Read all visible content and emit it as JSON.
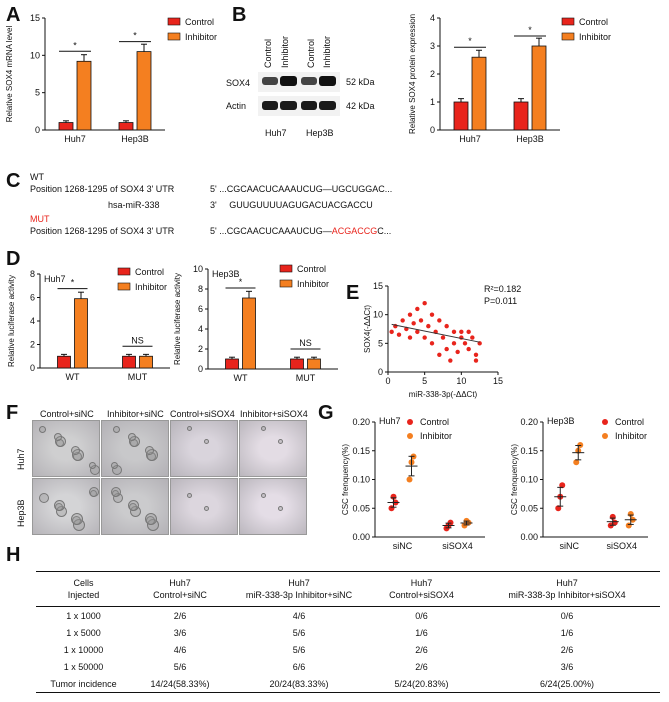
{
  "panels": {
    "A": "A",
    "B": "B",
    "C": "C",
    "D": "D",
    "E": "E",
    "F": "F",
    "G": "G",
    "H": "H"
  },
  "colors": {
    "control": "#e8241c",
    "inhibitor": "#f47f20"
  },
  "legend": {
    "control": "Control",
    "inhibitor": "Inhibitor"
  },
  "chart_data": [
    {
      "id": "A",
      "type": "bar",
      "categories": [
        "Huh7",
        "Hep3B"
      ],
      "series": [
        {
          "name": "Control",
          "values": [
            1,
            1
          ]
        },
        {
          "name": "Inhibitor",
          "values": [
            9.2,
            10.5
          ]
        }
      ],
      "ylabel": "Relative SOX4 mRNA level",
      "ylim": [
        0,
        15
      ],
      "yticks": [
        0,
        5,
        10,
        15
      ],
      "significance": [
        "*",
        "*"
      ]
    },
    {
      "id": "B",
      "type": "bar",
      "categories": [
        "Huh7",
        "Hep3B"
      ],
      "series": [
        {
          "name": "Control",
          "values": [
            1,
            1
          ]
        },
        {
          "name": "Inhibitor",
          "values": [
            2.6,
            3.0
          ]
        }
      ],
      "ylabel": "Relative SOX4 protein expression",
      "ylim": [
        0,
        4
      ],
      "yticks": [
        0,
        1,
        2,
        3,
        4
      ],
      "significance": [
        "*",
        "*"
      ]
    },
    {
      "id": "D-Huh7",
      "type": "bar",
      "title": "Huh7",
      "categories": [
        "WT",
        "MUT"
      ],
      "series": [
        {
          "name": "Control",
          "values": [
            1,
            1
          ]
        },
        {
          "name": "Inhibitor",
          "values": [
            5.9,
            1
          ]
        }
      ],
      "ylabel": "Relative luciferase activity",
      "ylim": [
        0,
        8
      ],
      "yticks": [
        0,
        2,
        4,
        6,
        8
      ],
      "significance": [
        "*",
        "NS"
      ]
    },
    {
      "id": "D-Hep3B",
      "type": "bar",
      "title": "Hep3B",
      "categories": [
        "WT",
        "MUT"
      ],
      "series": [
        {
          "name": "Control",
          "values": [
            1,
            1
          ]
        },
        {
          "name": "Inhibitor",
          "values": [
            7.1,
            1
          ]
        }
      ],
      "ylabel": "Relative luciferase activity",
      "ylim": [
        0,
        10
      ],
      "yticks": [
        0,
        2,
        4,
        6,
        8,
        10
      ],
      "significance": [
        "*",
        "NS"
      ]
    },
    {
      "id": "E",
      "type": "scatter",
      "xlabel": "miR-338-3p(-ΔΔCt)",
      "ylabel": "SOX4(-ΔΔCt)",
      "xlim": [
        0,
        15
      ],
      "ylim": [
        0,
        15
      ],
      "xticks": [
        0,
        5,
        10,
        15
      ],
      "yticks": [
        0,
        5,
        10,
        15
      ],
      "annotation_r2": "R²=0.182",
      "annotation_p": "P=0.011",
      "points": [
        [
          0.5,
          7
        ],
        [
          1,
          8
        ],
        [
          1.5,
          6.5
        ],
        [
          2,
          9
        ],
        [
          2.5,
          7.5
        ],
        [
          3,
          10
        ],
        [
          3,
          6
        ],
        [
          3.5,
          8.5
        ],
        [
          4,
          11
        ],
        [
          4,
          7
        ],
        [
          4.5,
          9
        ],
        [
          5,
          6
        ],
        [
          5,
          12
        ],
        [
          5.5,
          8
        ],
        [
          6,
          10
        ],
        [
          6,
          5
        ],
        [
          6.5,
          7
        ],
        [
          7,
          3
        ],
        [
          7,
          9
        ],
        [
          7.5,
          6
        ],
        [
          8,
          4
        ],
        [
          8,
          8
        ],
        [
          8.5,
          2
        ],
        [
          9,
          7
        ],
        [
          9,
          5
        ],
        [
          9.5,
          3.5
        ],
        [
          10,
          7
        ],
        [
          10,
          6
        ],
        [
          10.5,
          5
        ],
        [
          11,
          7
        ],
        [
          11,
          4
        ],
        [
          11.5,
          6
        ],
        [
          12,
          2
        ],
        [
          12.5,
          5
        ],
        [
          12,
          3
        ]
      ],
      "fit": [
        [
          0.5,
          8.3
        ],
        [
          12.5,
          5.2
        ]
      ]
    },
    {
      "id": "G-Huh7",
      "type": "scatter",
      "title": "Huh7",
      "categories": [
        "siNC",
        "siSOX4"
      ],
      "series": [
        {
          "name": "Control",
          "values": [
            [
              0.05,
              0.07,
              0.06
            ],
            [
              0.015,
              0.02,
              0.025
            ]
          ]
        },
        {
          "name": "Inhibitor",
          "values": [
            [
              0.1,
              0.13,
              0.14
            ],
            [
              0.02,
              0.028,
              0.025
            ]
          ]
        }
      ],
      "ylabel": "CSC frenquency(%)",
      "ylim": [
        0,
        0.2
      ],
      "yticks": [
        0.0,
        0.05,
        0.1,
        0.15,
        0.2
      ]
    },
    {
      "id": "G-Hep3B",
      "type": "scatter",
      "title": "Hep3B",
      "categories": [
        "siNC",
        "siSOX4"
      ],
      "series": [
        {
          "name": "Control",
          "values": [
            [
              0.05,
              0.07,
              0.09
            ],
            [
              0.02,
              0.035,
              0.025
            ]
          ]
        },
        {
          "name": "Inhibitor",
          "values": [
            [
              0.13,
              0.15,
              0.16
            ],
            [
              0.02,
              0.04,
              0.03
            ]
          ]
        }
      ],
      "ylabel": "CSC frenquency(%)",
      "ylim": [
        0,
        0.2
      ],
      "yticks": [
        0.0,
        0.05,
        0.1,
        0.15,
        0.2
      ]
    }
  ],
  "blot": {
    "lanes": [
      "Control",
      "Inhibitor",
      "Control",
      "Inhibitor"
    ],
    "rows": [
      {
        "name": "SOX4",
        "kda": "52 kDa"
      },
      {
        "name": "Actin",
        "kda": "42 kDa"
      }
    ],
    "groups": [
      "Huh7",
      "Hep3B"
    ]
  },
  "sequence": {
    "wt_label": "WT",
    "mut_label": "MUT",
    "wt_position": "Position 1268-1295 of SOX4 3' UTR",
    "wt_seq": "5' ...CGCAACUCAAAUCUG—UGCUGGAC...",
    "mir_label": "hsa-miR-338",
    "mir_seq": "3'     GUUGUUUUAGUGACUACGACCU",
    "mut_position": "Position 1268-1295 of SOX4 3' UTR",
    "mut_seq_prefix": "5' ...CGCAACUCAAAUCUG—",
    "mut_seq_mut": "ACGACCG",
    "mut_seq_suffix": "C..."
  },
  "images": {
    "columns": [
      "Control+siNC",
      "Inhibitor+siNC",
      "Control+siSOX4",
      "Inhibitor+siSOX4"
    ],
    "rows": [
      "Huh7",
      "Hep3B"
    ]
  },
  "table": {
    "header": [
      [
        "Cells",
        "Injected"
      ],
      [
        "Huh7",
        "Control+siNC"
      ],
      [
        "Huh7",
        "miR-338-3p Inhibitor+siNC"
      ],
      [
        "Huh7",
        "Control+siSOX4"
      ],
      [
        "Huh7",
        "miR-338-3p Inhibitor+siSOX4"
      ]
    ],
    "rows": [
      [
        "1 x 1000",
        "2/6",
        "4/6",
        "0/6",
        "0/6"
      ],
      [
        "1 x 5000",
        "3/6",
        "5/6",
        "1/6",
        "1/6"
      ],
      [
        "1 x 10000",
        "4/6",
        "5/6",
        "2/6",
        "2/6"
      ],
      [
        "1 x 50000",
        "5/6",
        "6/6",
        "2/6",
        "3/6"
      ],
      [
        "Tumor incidence",
        "14/24(58.33%)",
        "20/24(83.33%)",
        "5/24(20.83%)",
        "6/24(25.00%)"
      ]
    ]
  }
}
